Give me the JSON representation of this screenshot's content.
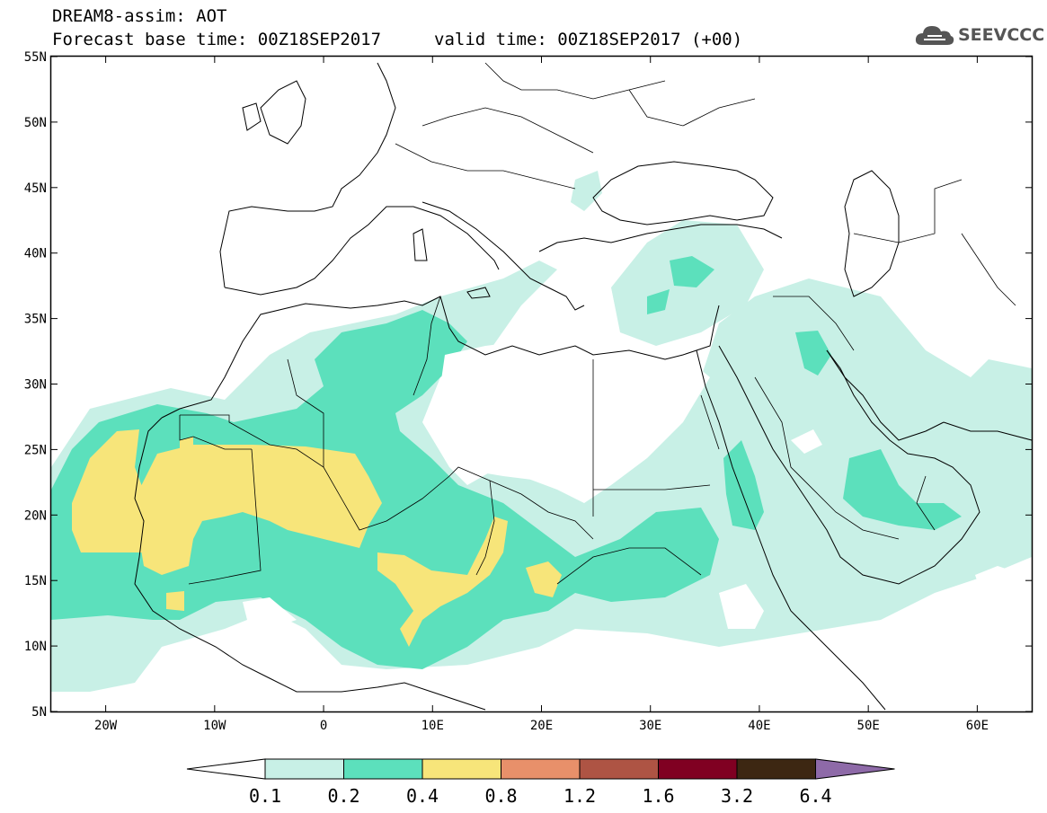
{
  "header": {
    "line1": "DREAM8-assim: AOT",
    "line2": "Forecast base time: 00Z18SEP2017",
    "line3": "valid time: 00Z18SEP2017 (+00)"
  },
  "logo": {
    "text": "SEEVCCC",
    "icon": "cloud-icon"
  },
  "map": {
    "lon_range": [
      -25,
      65
    ],
    "lat_range": [
      5,
      55
    ],
    "lat_labels": [
      "55N",
      "50N",
      "45N",
      "40N",
      "35N",
      "30N",
      "25N",
      "20N",
      "15N",
      "10N",
      "5N"
    ],
    "lon_labels": [
      "20W",
      "10W",
      "0",
      "10E",
      "20E",
      "30E",
      "40E",
      "50E",
      "60E"
    ]
  },
  "colorbar": {
    "labels": [
      "0.1",
      "0.2",
      "0.4",
      "0.8",
      "1.2",
      "1.6",
      "3.2",
      "6.4"
    ],
    "colors": [
      "#c8f0e6",
      "#5ce0bc",
      "#f7e57a",
      "#e8906a",
      "#ae5444",
      "#800022",
      "#3d2712",
      "#8e6aa8"
    ]
  }
}
